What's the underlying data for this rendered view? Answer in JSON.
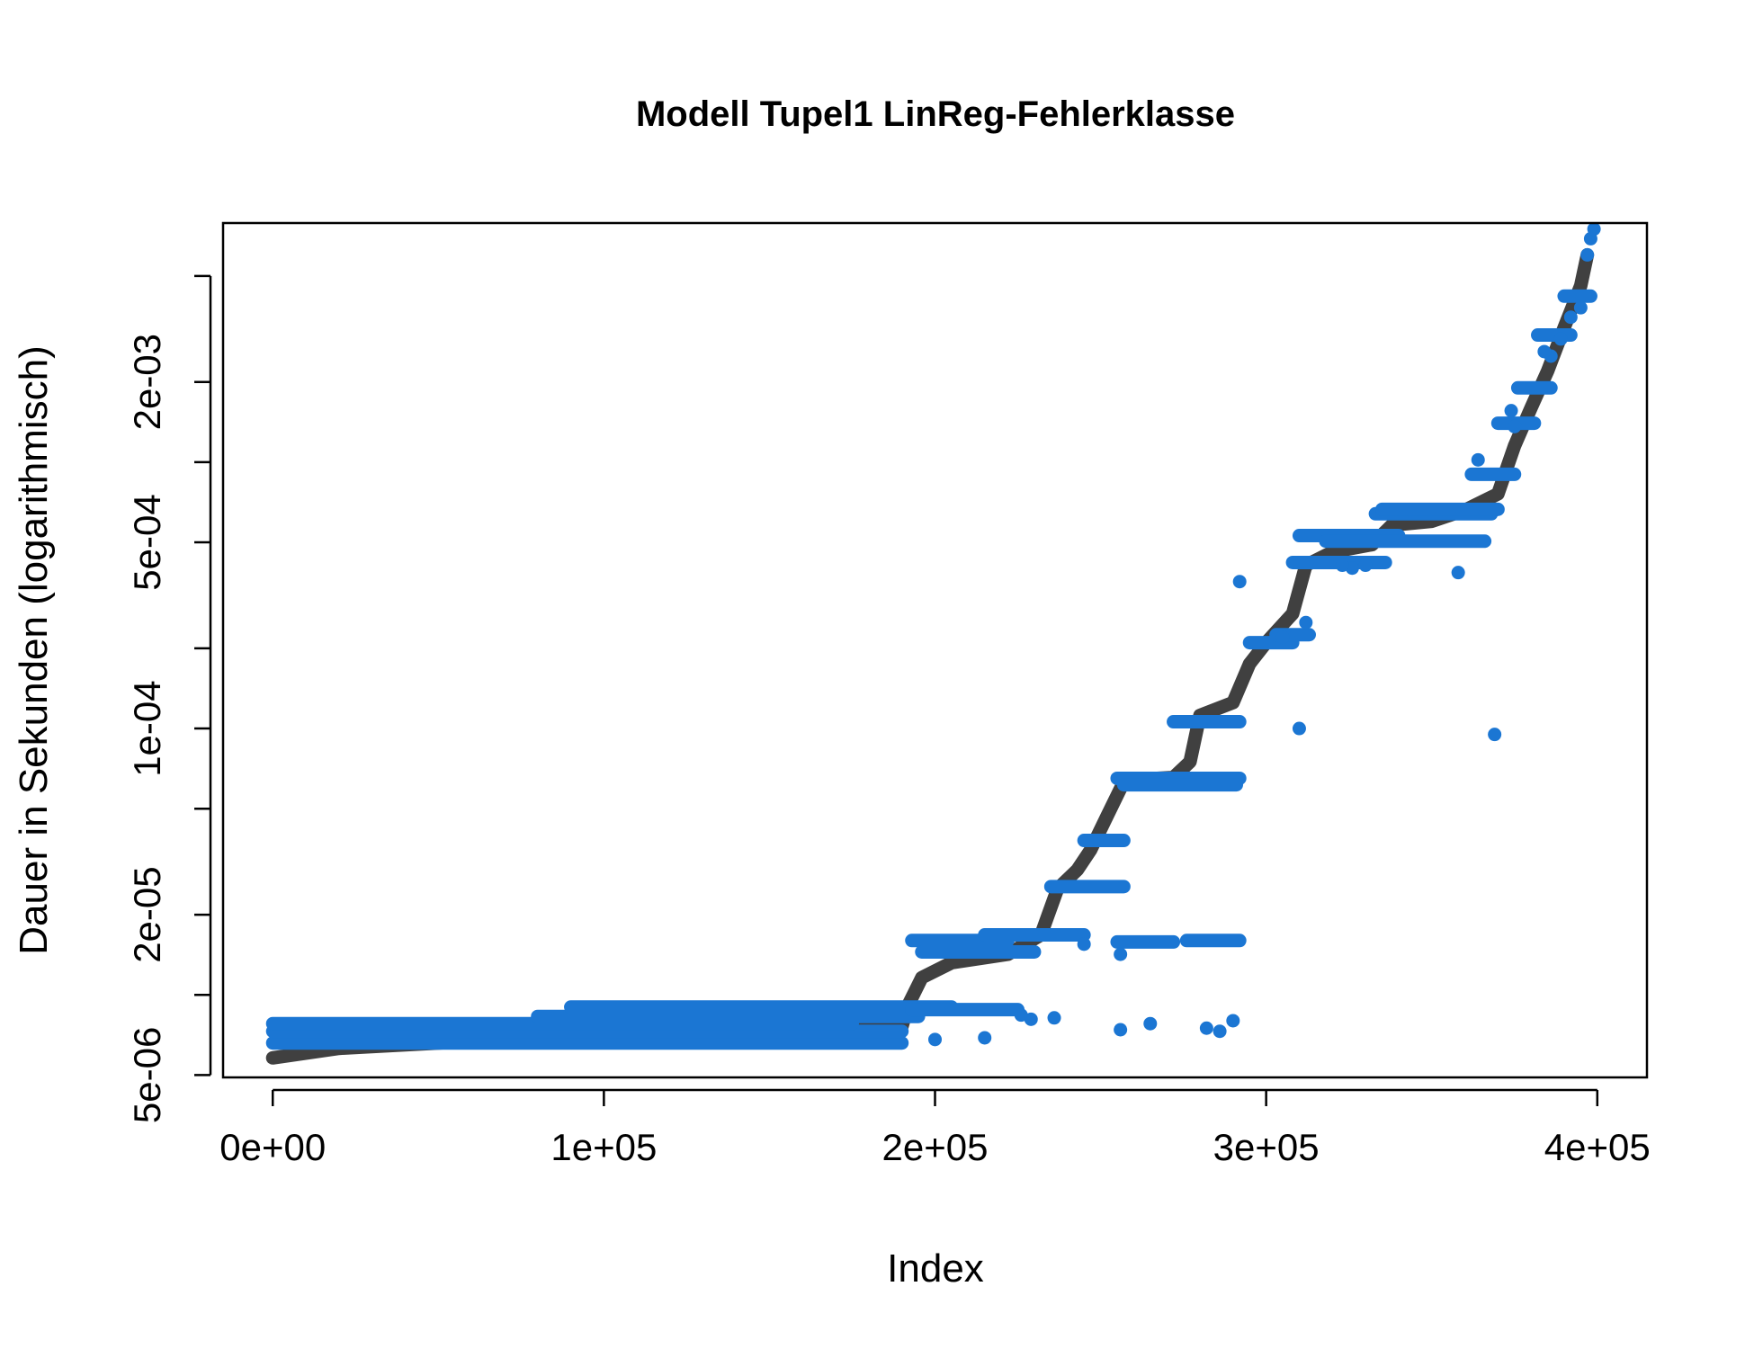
{
  "chart_data": {
    "type": "scatter",
    "title": "Modell Tupel1 LinReg-Fehlerklasse",
    "xlabel": "Index",
    "ylabel": "Dauer in Sekunden (logarithmisch)",
    "x_scale": "linear",
    "y_scale": "log",
    "xlim": [
      -15000,
      415000
    ],
    "ylim": [
      4.9e-06,
      0.0079
    ],
    "x_ticks": [
      {
        "value": 0,
        "label": "0e+00"
      },
      {
        "value": 100000,
        "label": "1e+05"
      },
      {
        "value": 200000,
        "label": "2e+05"
      },
      {
        "value": 300000,
        "label": "3e+05"
      },
      {
        "value": 400000,
        "label": "4e+05"
      }
    ],
    "y_ticks": [
      {
        "value": 5e-06,
        "label": "5e-06"
      },
      {
        "value": 1e-05,
        "label": ""
      },
      {
        "value": 2e-05,
        "label": "2e-05"
      },
      {
        "value": 5e-05,
        "label": ""
      },
      {
        "value": 0.0001,
        "label": "1e-04"
      },
      {
        "value": 0.0002,
        "label": ""
      },
      {
        "value": 0.0005,
        "label": "5e-04"
      },
      {
        "value": 0.001,
        "label": ""
      },
      {
        "value": 0.002,
        "label": "2e-03"
      },
      {
        "value": 0.005,
        "label": ""
      }
    ],
    "grid": false,
    "legend": "none",
    "series": [
      {
        "color": "#404040",
        "marker": "dense-curve",
        "points": [
          [
            0,
            5.8e-06
          ],
          [
            20000,
            6.3e-06
          ],
          [
            60000,
            6.7e-06
          ],
          [
            100000,
            7e-06
          ],
          [
            150000,
            7.3e-06
          ],
          [
            190000,
            7.6e-06
          ],
          [
            192000,
            9.2e-06
          ],
          [
            196000,
            1.16e-05
          ],
          [
            205000,
            1.32e-05
          ],
          [
            222000,
            1.42e-05
          ],
          [
            232000,
            1.68e-05
          ],
          [
            237000,
            2.5e-05
          ],
          [
            243000,
            2.95e-05
          ],
          [
            247000,
            3.5e-05
          ],
          [
            252000,
            4.7e-05
          ],
          [
            257000,
            6.3e-05
          ],
          [
            262000,
            6.45e-05
          ],
          [
            272000,
            6.55e-05
          ],
          [
            277000,
            7.5e-05
          ],
          [
            280000,
            0.000112
          ],
          [
            290000,
            0.000125
          ],
          [
            295000,
            0.000175
          ],
          [
            300000,
            0.00021
          ],
          [
            308000,
            0.00027
          ],
          [
            312000,
            0.00041
          ],
          [
            320000,
            0.00046
          ],
          [
            332000,
            0.00049
          ],
          [
            338000,
            0.00058
          ],
          [
            350000,
            0.0006
          ],
          [
            360000,
            0.00066
          ],
          [
            370000,
            0.00076
          ],
          [
            375000,
            0.00115
          ],
          [
            380000,
            0.0016
          ],
          [
            385000,
            0.0022
          ],
          [
            390000,
            0.0032
          ],
          [
            395000,
            0.0046
          ],
          [
            397000,
            0.006
          ]
        ]
      },
      {
        "color": "#1b76d3",
        "marker": "point",
        "bands": [
          {
            "x": [
              0,
              190000
            ],
            "y": 6.6e-06
          },
          {
            "x": [
              0,
              190000
            ],
            "y": 7.3e-06
          },
          {
            "x": [
              0,
              175000
            ],
            "y": 7.8e-06
          },
          {
            "x": [
              80000,
              195000
            ],
            "y": 8.3e-06
          },
          {
            "x": [
              90000,
              205000
            ],
            "y": 9e-06
          },
          {
            "x": [
              193000,
              225000
            ],
            "y": 8.8e-06
          },
          {
            "x": [
              193000,
              222000
            ],
            "y": 1.6e-05
          },
          {
            "x": [
              196000,
              230000
            ],
            "y": 1.45e-05
          },
          {
            "x": [
              215000,
              245000
            ],
            "y": 1.68e-05
          },
          {
            "x": [
              235000,
              257000
            ],
            "y": 2.55e-05
          },
          {
            "x": [
              245000,
              257000
            ],
            "y": 3.8e-05
          },
          {
            "x": [
              255000,
              272000
            ],
            "y": 1.58e-05
          },
          {
            "x": [
              255000,
              292000
            ],
            "y": 6.5e-05
          },
          {
            "x": [
              257000,
              291000
            ],
            "y": 6.15e-05
          },
          {
            "x": [
              272000,
              292000
            ],
            "y": 0.000106
          },
          {
            "x": [
              276000,
              292000
            ],
            "y": 1.6e-05
          },
          {
            "x": [
              295000,
              308000
            ],
            "y": 0.00021
          },
          {
            "x": [
              303000,
              313000
            ],
            "y": 0.000225
          },
          {
            "x": [
              308000,
              336000
            ],
            "y": 0.00042
          },
          {
            "x": [
              310000,
              340000
            ],
            "y": 0.00053
          },
          {
            "x": [
              318000,
              366000
            ],
            "y": 0.000505
          },
          {
            "x": [
              333000,
              368000
            ],
            "y": 0.00064
          },
          {
            "x": [
              335000,
              370000
            ],
            "y": 0.000665
          },
          {
            "x": [
              362000,
              375000
            ],
            "y": 0.0009
          },
          {
            "x": [
              370000,
              381000
            ],
            "y": 0.0014
          },
          {
            "x": [
              376000,
              386000
            ],
            "y": 0.0019
          },
          {
            "x": [
              382000,
              392000
            ],
            "y": 0.003
          },
          {
            "x": [
              390000,
              398000
            ],
            "y": 0.0042
          }
        ],
        "points": [
          [
            292000,
            0.000356
          ],
          [
            245000,
            1.55e-05
          ],
          [
            256000,
            1.42e-05
          ],
          [
            215000,
            6.9e-06
          ],
          [
            200000,
            6.8e-06
          ],
          [
            226000,
            8.4e-06
          ],
          [
            229000,
            8.1e-06
          ],
          [
            236000,
            8.2e-06
          ],
          [
            310000,
            0.0001
          ],
          [
            369000,
            9.5e-05
          ],
          [
            358000,
            0.000385
          ],
          [
            374000,
            0.00156
          ],
          [
            375000,
            0.00136
          ],
          [
            364000,
            0.00102
          ],
          [
            330000,
            0.00041
          ],
          [
            326000,
            0.0004
          ],
          [
            323000,
            0.00041
          ],
          [
            312000,
            0.00025
          ],
          [
            305000,
            0.00022
          ],
          [
            395000,
            0.0038
          ],
          [
            392000,
            0.0035
          ],
          [
            397000,
            0.006
          ],
          [
            398000,
            0.0069
          ],
          [
            399000,
            0.0075
          ],
          [
            386000,
            0.0025
          ],
          [
            384000,
            0.0026
          ],
          [
            389000,
            0.0029
          ],
          [
            265000,
            7.8e-06
          ],
          [
            282000,
            7.5e-06
          ],
          [
            290000,
            8e-06
          ],
          [
            286000,
            7.3e-06
          ],
          [
            256000,
            7.4e-06
          ]
        ]
      }
    ]
  }
}
